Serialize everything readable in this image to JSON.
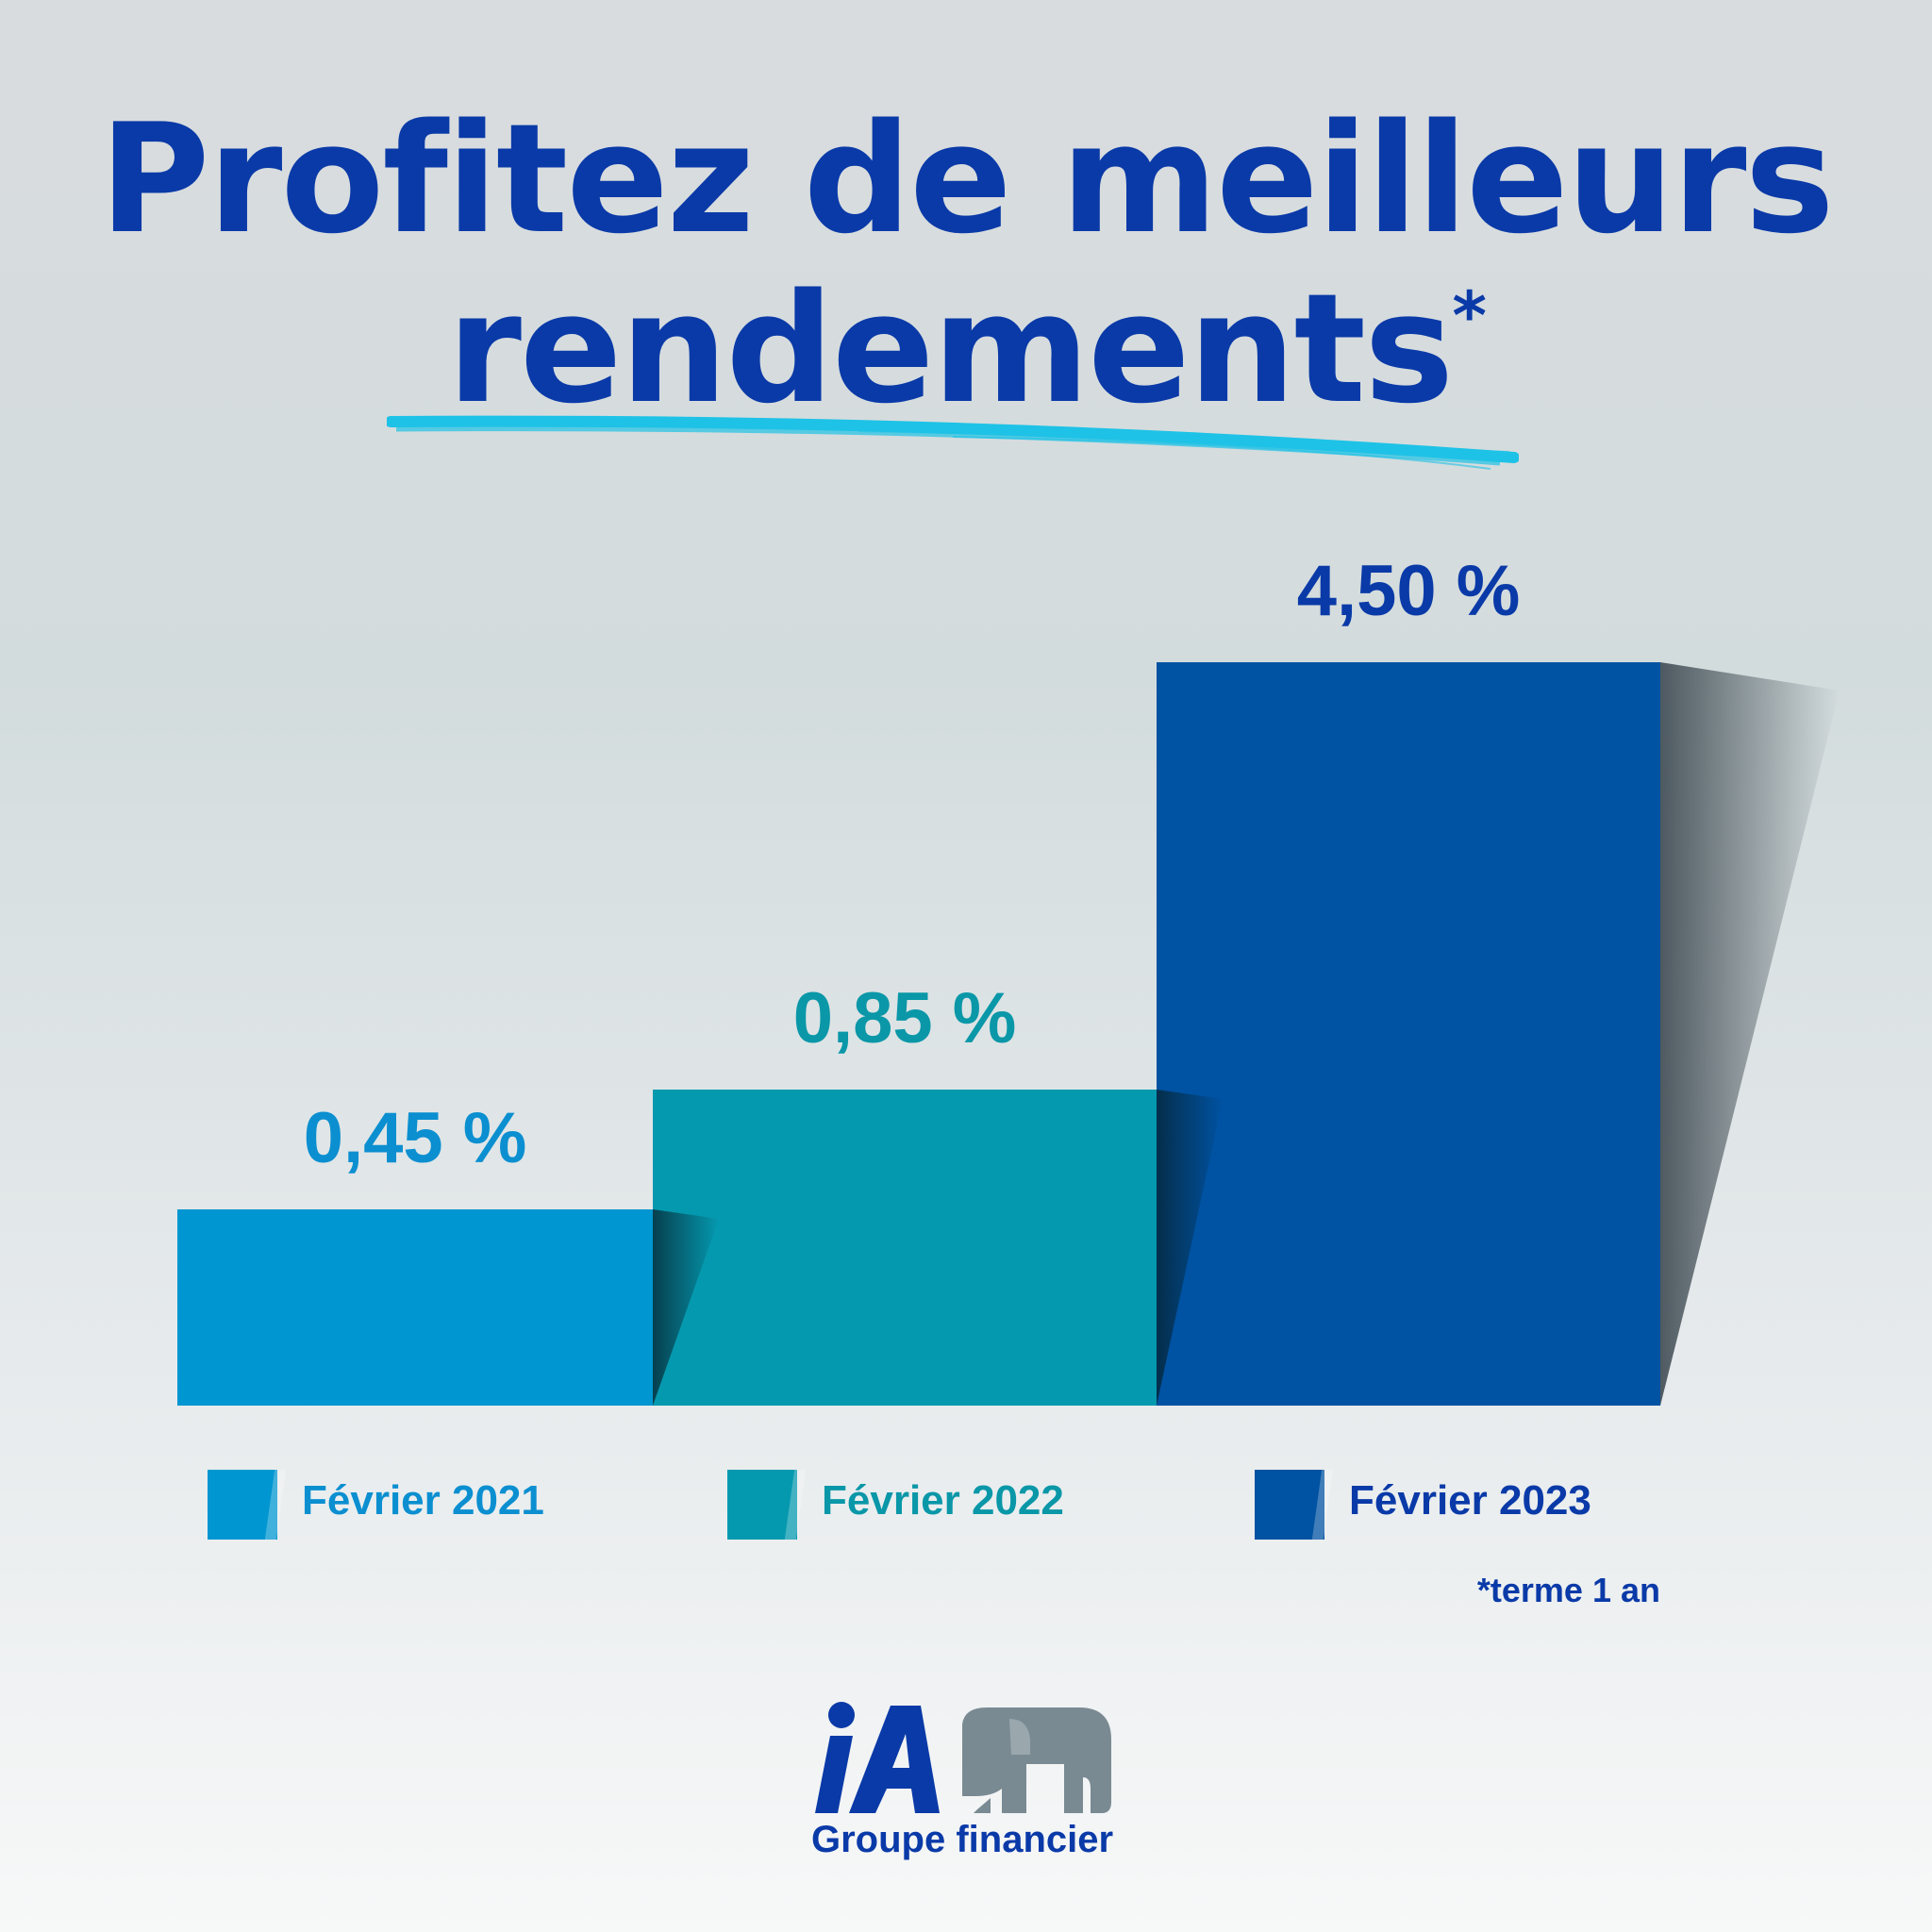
{
  "title": {
    "line1": "Profitez de meilleurs",
    "line2": "rendements",
    "asterisk": "*"
  },
  "chart_data": {
    "type": "bar",
    "categories": [
      "Février 2021",
      "Février 2022",
      "Février 2023"
    ],
    "values": [
      0.45,
      0.85,
      4.5
    ],
    "value_labels": [
      "0,45 %",
      "0,85 %",
      "4,50 %"
    ],
    "colors": [
      "#0096d1",
      "#0599af",
      "#0052a2"
    ],
    "label_colors": [
      "#0b8fd0",
      "#0a97a8",
      "#0a3aa8"
    ],
    "grid": false,
    "legend_placement": "bottom"
  },
  "legend": [
    {
      "label": "Février 2021",
      "color": "#0096d1"
    },
    {
      "label": "Février 2022",
      "color": "#0599af"
    },
    {
      "label": "Février 2023",
      "color": "#0052a2"
    }
  ],
  "footnote": "*terme 1 an",
  "logo": {
    "mark": "iA",
    "text": "Groupe financier",
    "icon": "elephant-icon",
    "colors": {
      "blue": "#0a3aa8",
      "grey": "#7a8a93"
    }
  },
  "accent_color": "#1ec2e6"
}
